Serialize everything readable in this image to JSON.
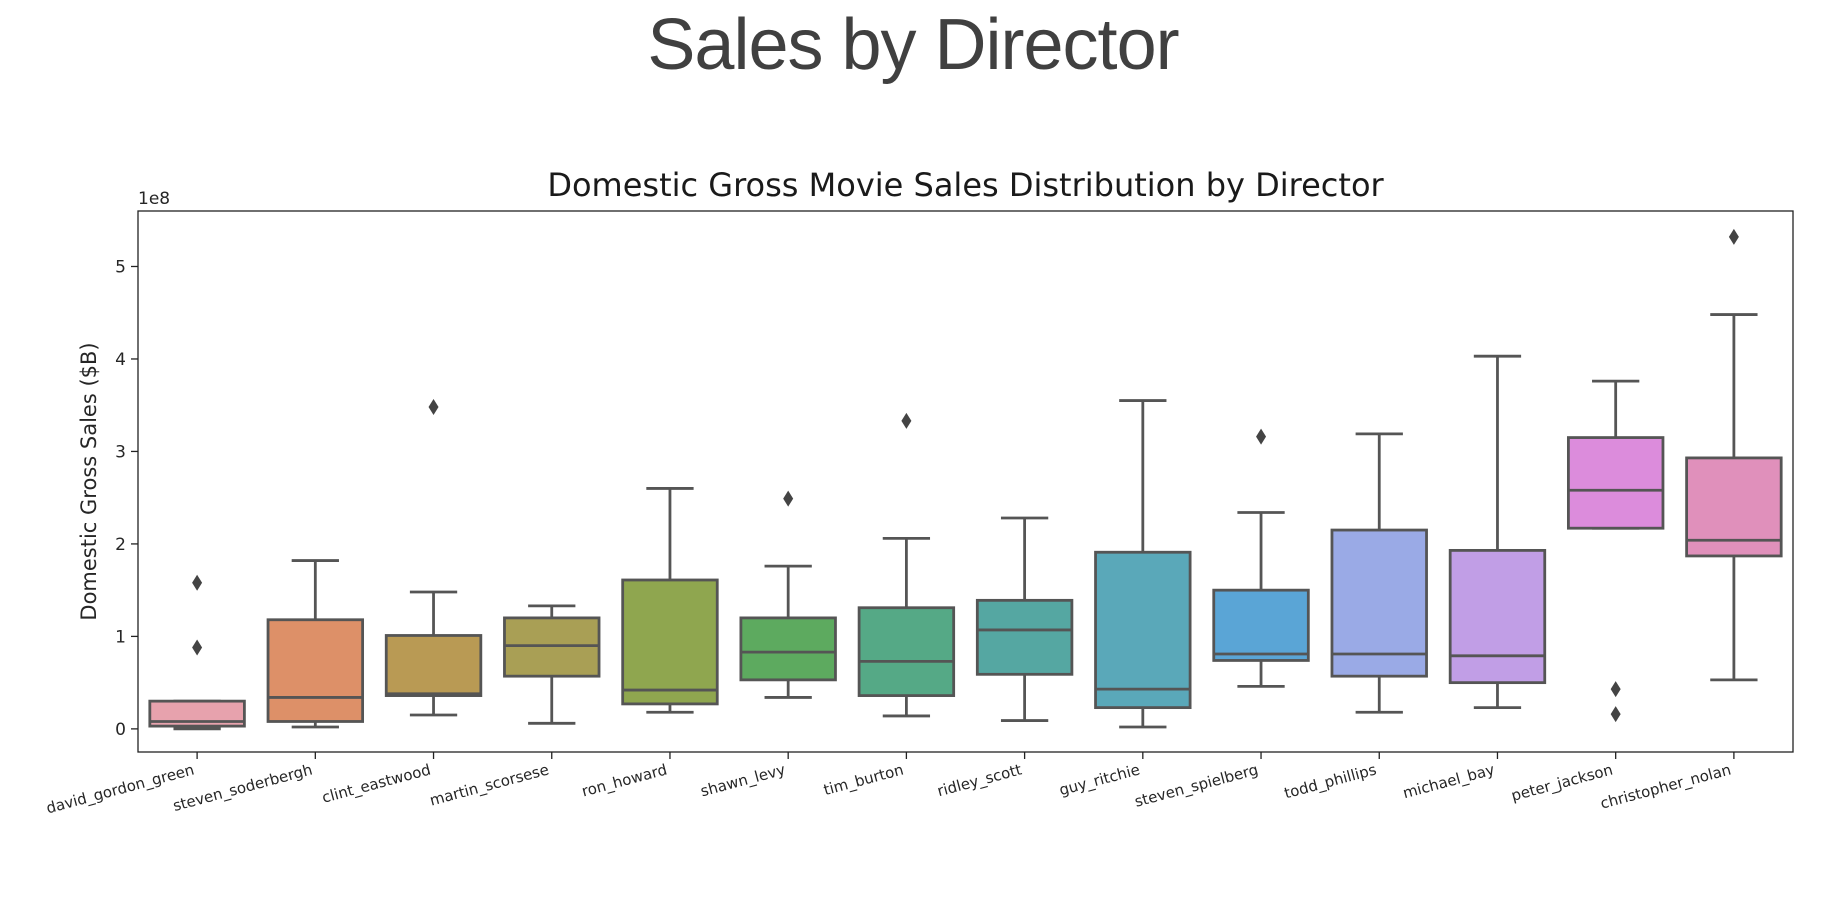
{
  "slide": {
    "title": "Sales by Director"
  },
  "chart_data": {
    "type": "boxplot",
    "title": "Domestic Gross Movie Sales Distribution by Director",
    "xlabel": "",
    "ylabel": "Domestic Gross Sales ($B)",
    "y_offset_label": "1e8",
    "ylim": [
      -0.25,
      5.6
    ],
    "yticks": [
      0,
      1,
      2,
      3,
      4,
      5
    ],
    "grid": false,
    "categories": [
      "david_gordon_green",
      "steven_soderbergh",
      "clint_eastwood",
      "martin_scorsese",
      "ron_howard",
      "shawn_levy",
      "tim_burton",
      "ridley_scott",
      "guy_ritchie",
      "steven_spielberg",
      "todd_phillips",
      "michael_bay",
      "peter_jackson",
      "christopher_nolan"
    ],
    "boxes": [
      {
        "whisker_low": 0.0,
        "q1": 0.03,
        "median": 0.08,
        "q3": 0.3,
        "whisker_high": 0.3,
        "outliers": [
          0.88,
          1.58
        ],
        "color": "#e7a2ad"
      },
      {
        "whisker_low": 0.02,
        "q1": 0.08,
        "median": 0.34,
        "q3": 1.18,
        "whisker_high": 1.82,
        "outliers": [],
        "color": "#dd9068"
      },
      {
        "whisker_low": 0.15,
        "q1": 0.36,
        "median": 0.38,
        "q3": 1.01,
        "whisker_high": 1.48,
        "outliers": [
          3.48
        ],
        "color": "#b99a54"
      },
      {
        "whisker_low": 0.06,
        "q1": 0.57,
        "median": 0.9,
        "q3": 1.2,
        "whisker_high": 1.33,
        "outliers": [],
        "color": "#a99f55"
      },
      {
        "whisker_low": 0.18,
        "q1": 0.27,
        "median": 0.42,
        "q3": 1.61,
        "whisker_high": 2.6,
        "outliers": [],
        "color": "#8fa64f"
      },
      {
        "whisker_low": 0.34,
        "q1": 0.53,
        "median": 0.83,
        "q3": 1.2,
        "whisker_high": 1.76,
        "outliers": [
          2.49
        ],
        "color": "#5daa5f"
      },
      {
        "whisker_low": 0.14,
        "q1": 0.36,
        "median": 0.73,
        "q3": 1.31,
        "whisker_high": 2.06,
        "outliers": [
          3.33
        ],
        "color": "#55a986"
      },
      {
        "whisker_low": 0.09,
        "q1": 0.59,
        "median": 1.07,
        "q3": 1.39,
        "whisker_high": 2.28,
        "outliers": [],
        "color": "#55a7a2"
      },
      {
        "whisker_low": 0.02,
        "q1": 0.23,
        "median": 0.43,
        "q3": 1.91,
        "whisker_high": 3.55,
        "outliers": [],
        "color": "#5aa8b9"
      },
      {
        "whisker_low": 0.46,
        "q1": 0.74,
        "median": 0.81,
        "q3": 1.5,
        "whisker_high": 2.34,
        "outliers": [
          3.16
        ],
        "color": "#5aa5d6"
      },
      {
        "whisker_low": 0.18,
        "q1": 0.57,
        "median": 0.81,
        "q3": 2.15,
        "whisker_high": 3.19,
        "outliers": [],
        "color": "#9aaae6"
      },
      {
        "whisker_low": 0.23,
        "q1": 0.5,
        "median": 0.79,
        "q3": 1.93,
        "whisker_high": 4.03,
        "outliers": [],
        "color": "#c19ee6"
      },
      {
        "whisker_low": 2.17,
        "q1": 2.17,
        "median": 2.58,
        "q3": 3.15,
        "whisker_high": 3.76,
        "outliers": [
          0.43,
          0.16
        ],
        "color": "#dc8cdc"
      },
      {
        "whisker_low": 0.53,
        "q1": 1.87,
        "median": 2.04,
        "q3": 2.93,
        "whisker_high": 4.48,
        "outliers": [
          5.32
        ],
        "color": "#e090bb"
      }
    ]
  }
}
